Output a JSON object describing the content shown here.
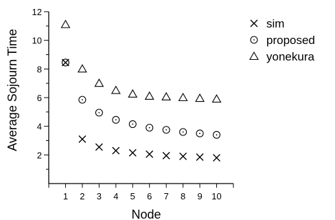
{
  "chart_data": {
    "type": "scatter",
    "title": "",
    "xlabel": "Node",
    "ylabel": "Average Sojourn Time",
    "xlim": [
      0,
      11
    ],
    "ylim": [
      0,
      12
    ],
    "xticks": [
      "1",
      "2",
      "3",
      "4",
      "5",
      "6",
      "7",
      "8",
      "9",
      "10"
    ],
    "yticks": [
      "2",
      "4",
      "6",
      "8",
      "10",
      "12"
    ],
    "grid": false,
    "legend_position": "top-right",
    "series": [
      {
        "name": "sim",
        "marker": "x",
        "x": [
          1,
          2,
          3,
          4,
          5,
          6,
          7,
          8,
          9,
          10
        ],
        "y": [
          8.45,
          3.1,
          2.55,
          2.3,
          2.15,
          2.05,
          1.95,
          1.9,
          1.85,
          1.8
        ]
      },
      {
        "name": "proposed",
        "marker": "circle",
        "x": [
          1,
          2,
          3,
          4,
          5,
          6,
          7,
          8,
          9,
          10
        ],
        "y": [
          8.45,
          5.85,
          4.95,
          4.45,
          4.15,
          3.9,
          3.75,
          3.6,
          3.5,
          3.4
        ]
      },
      {
        "name": "yonekura",
        "marker": "triangle",
        "x": [
          1,
          2,
          3,
          4,
          5,
          6,
          7,
          8,
          9,
          10
        ],
        "y": [
          11.1,
          8.0,
          7.0,
          6.5,
          6.25,
          6.1,
          6.05,
          6.0,
          5.95,
          5.9
        ]
      }
    ]
  }
}
